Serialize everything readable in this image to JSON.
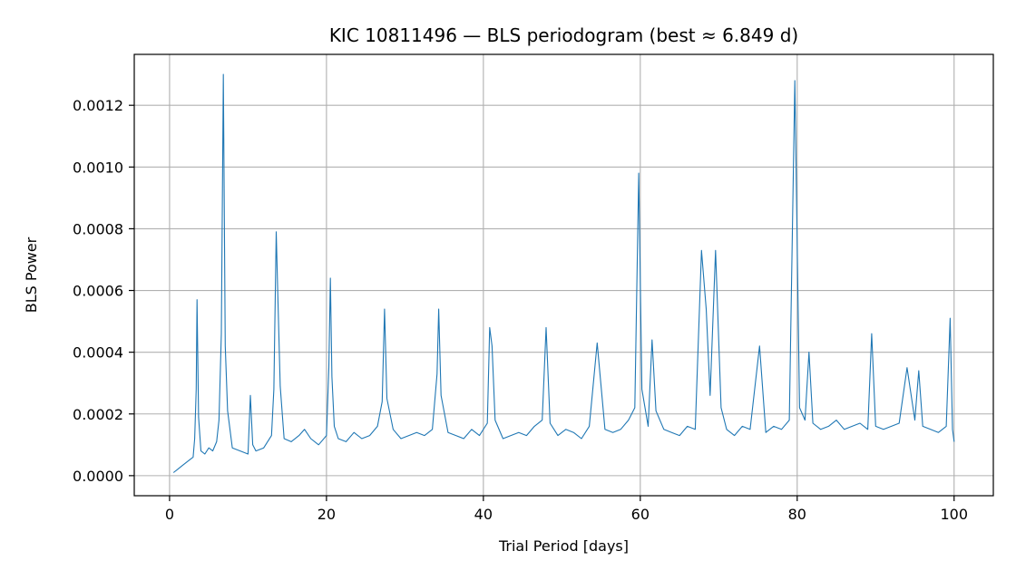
{
  "chart_data": {
    "type": "line",
    "title": "KIC 10811496 — BLS periodogram (best ≈ 6.849 d)",
    "xlabel": "Trial Period [days]",
    "ylabel": "BLS Power",
    "xlim": [
      -4.5,
      105
    ],
    "ylim": [
      -6.5e-05,
      0.001365
    ],
    "x_ticks": [
      0,
      20,
      40,
      60,
      80,
      100
    ],
    "x_tick_labels": [
      "0",
      "20",
      "40",
      "60",
      "80",
      "100"
    ],
    "y_ticks": [
      0,
      0.0002,
      0.0004,
      0.0006,
      0.0008,
      0.001,
      0.0012
    ],
    "y_tick_labels": [
      "0.0000",
      "0.0002",
      "0.0004",
      "0.0006",
      "0.0008",
      "0.0010",
      "0.0012"
    ],
    "grid": true,
    "line_color": "#1f77b4",
    "series": [
      {
        "x": [
          0.5,
          1,
          1.5,
          2,
          2.5,
          3,
          3.2,
          3.4,
          3.5,
          3.7,
          4,
          4.5,
          5,
          5.5,
          6,
          6.3,
          6.6,
          6.85,
          7.1,
          7.4,
          8,
          9,
          10,
          10.3,
          10.6,
          11,
          12,
          13,
          13.3,
          13.6,
          13.8,
          14.1,
          14.6,
          15.5,
          16.5,
          17.2,
          18,
          19,
          20,
          20.3,
          20.5,
          20.7,
          21,
          21.5,
          22.5,
          23.5,
          24.5,
          25.5,
          26.5,
          27.1,
          27.4,
          27.7,
          28.5,
          29.5,
          30.5,
          31.5,
          32.5,
          33.5,
          34.1,
          34.3,
          34.6,
          35.5,
          36.5,
          37.5,
          38.5,
          39.5,
          40.5,
          40.8,
          41.1,
          41.5,
          42.5,
          43.5,
          44.5,
          45.5,
          46.5,
          47.5,
          48,
          48.5,
          49.5,
          50.5,
          51.5,
          52.5,
          53.5,
          54.5,
          55.5,
          56.5,
          57.5,
          58.5,
          59.3,
          59.8,
          60.2,
          61,
          61.5,
          62,
          63,
          64,
          65,
          66,
          67,
          67.8,
          68.4,
          68.9,
          69.6,
          70.3,
          71,
          72,
          73,
          74,
          75.2,
          76,
          77,
          78,
          79,
          79.7,
          80.3,
          81,
          81.5,
          82,
          83,
          84,
          85,
          86,
          87,
          88,
          89,
          89.5,
          90,
          91,
          92,
          93,
          94,
          95,
          95.5,
          96,
          97,
          98,
          99,
          99.5,
          99.8,
          100
        ],
        "y": [
          1e-05,
          2e-05,
          3e-05,
          4e-05,
          5e-05,
          6e-05,
          0.00012,
          0.00028,
          0.00057,
          0.00019,
          8e-05,
          7e-05,
          9e-05,
          8e-05,
          0.00011,
          0.00018,
          0.00046,
          0.0013,
          0.00042,
          0.00021,
          9e-05,
          8e-05,
          7e-05,
          0.00026,
          0.0001,
          8e-05,
          9e-05,
          0.00013,
          0.00028,
          0.00079,
          0.00058,
          0.00029,
          0.00012,
          0.00011,
          0.00013,
          0.00015,
          0.00012,
          0.0001,
          0.00013,
          0.00035,
          0.00064,
          0.00032,
          0.00016,
          0.00012,
          0.00011,
          0.00014,
          0.00012,
          0.00013,
          0.00016,
          0.00024,
          0.00054,
          0.00025,
          0.00015,
          0.00012,
          0.00013,
          0.00014,
          0.00013,
          0.00015,
          0.00033,
          0.00054,
          0.00026,
          0.00014,
          0.00013,
          0.00012,
          0.00015,
          0.00013,
          0.00017,
          0.00048,
          0.00042,
          0.00018,
          0.00012,
          0.00013,
          0.00014,
          0.00013,
          0.00016,
          0.00018,
          0.00048,
          0.00017,
          0.00013,
          0.00015,
          0.00014,
          0.00012,
          0.00016,
          0.00043,
          0.00015,
          0.00014,
          0.00015,
          0.00018,
          0.00022,
          0.00098,
          0.00028,
          0.00016,
          0.00044,
          0.00021,
          0.00015,
          0.00014,
          0.00013,
          0.00016,
          0.00015,
          0.00073,
          0.00054,
          0.00026,
          0.00073,
          0.00022,
          0.00015,
          0.00013,
          0.00016,
          0.00015,
          0.00042,
          0.00014,
          0.00016,
          0.00015,
          0.00018,
          0.00128,
          0.00022,
          0.00018,
          0.0004,
          0.00017,
          0.00015,
          0.00016,
          0.00018,
          0.00015,
          0.00016,
          0.00017,
          0.00015,
          0.00046,
          0.00016,
          0.00015,
          0.00016,
          0.00017,
          0.00035,
          0.00018,
          0.00034,
          0.00016,
          0.00015,
          0.00014,
          0.00016,
          0.00051,
          0.00015,
          0.00011
        ]
      }
    ]
  }
}
